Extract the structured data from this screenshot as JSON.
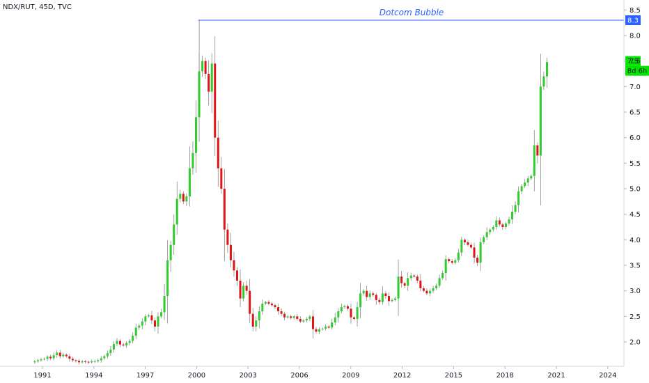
{
  "symbol_title": "NDX/RUT, 45D, TVC",
  "chart_data": {
    "type": "candlestick",
    "title": "NDX/RUT, 45D, TVC",
    "ylim": [
      1.6,
      8.55
    ],
    "xlim": [
      1990.0,
      2025.0
    ],
    "y_ticks": [
      "2.0",
      "2.5",
      "3.0",
      "3.5",
      "4.0",
      "4.5",
      "5.0",
      "5.5",
      "6.0",
      "6.5",
      "7.0",
      "7.5",
      "8.0",
      "8.5"
    ],
    "x_ticks": [
      "1991",
      "1994",
      "1997",
      "2000",
      "2003",
      "2006",
      "2009",
      "2012",
      "2015",
      "2018",
      "2021",
      "2024"
    ],
    "annotation": {
      "text": "Dotcom Bubble",
      "level": 8.3,
      "start_year": 2000.1
    },
    "price_labels": [
      {
        "value": "8.3",
        "color": "#2962ff"
      },
      {
        "value": "7.5",
        "color": "#00e600"
      },
      {
        "countdown": "8d 6h",
        "color": "#00e600"
      }
    ],
    "up_color": "#2ecc2e",
    "down_color": "#e01414",
    "line_color": "#2962ff",
    "closes": [
      1.62,
      1.64,
      1.66,
      1.67,
      1.71,
      1.68,
      1.74,
      1.79,
      1.72,
      1.75,
      1.72,
      1.67,
      1.64,
      1.63,
      1.6,
      1.62,
      1.61,
      1.6,
      1.62,
      1.62,
      1.64,
      1.68,
      1.72,
      1.78,
      1.85,
      1.96,
      2.02,
      1.95,
      1.93,
      1.98,
      2.02,
      2.12,
      2.28,
      2.32,
      2.4,
      2.5,
      2.52,
      2.42,
      2.3,
      2.5,
      2.58,
      2.9,
      3.6,
      3.9,
      4.3,
      4.8,
      4.9,
      4.75,
      4.85,
      5.4,
      5.7,
      6.4,
      7.3,
      7.5,
      7.25,
      6.9,
      7.45,
      6.0,
      5.4,
      5.0,
      4.2,
      3.9,
      3.6,
      3.4,
      3.2,
      2.85,
      3.1,
      3.0,
      2.55,
      2.3,
      2.42,
      2.6,
      2.75,
      2.78,
      2.75,
      2.72,
      2.68,
      2.6,
      2.55,
      2.48,
      2.5,
      2.47,
      2.5,
      2.45,
      2.4,
      2.42,
      2.45,
      2.5,
      2.25,
      2.2,
      2.25,
      2.26,
      2.3,
      2.28,
      2.38,
      2.48,
      2.6,
      2.68,
      2.7,
      2.65,
      2.48,
      2.45,
      2.68,
      2.95,
      3.0,
      2.88,
      2.95,
      2.92,
      2.82,
      2.78,
      2.95,
      2.9,
      2.8,
      2.82,
      2.85,
      3.28,
      3.15,
      3.1,
      3.25,
      3.3,
      3.28,
      3.2,
      3.05,
      3.0,
      2.95,
      3.0,
      3.05,
      3.1,
      3.25,
      3.35,
      3.62,
      3.58,
      3.55,
      3.6,
      3.75,
      4.0,
      3.95,
      3.9,
      3.85,
      3.65,
      3.55,
      3.95,
      4.05,
      4.15,
      4.2,
      4.25,
      4.38,
      4.3,
      4.25,
      4.32,
      4.4,
      4.55,
      4.68,
      4.95,
      5.05,
      5.12,
      5.2,
      5.25,
      5.85,
      5.65,
      7.0,
      7.2,
      7.48
    ]
  }
}
